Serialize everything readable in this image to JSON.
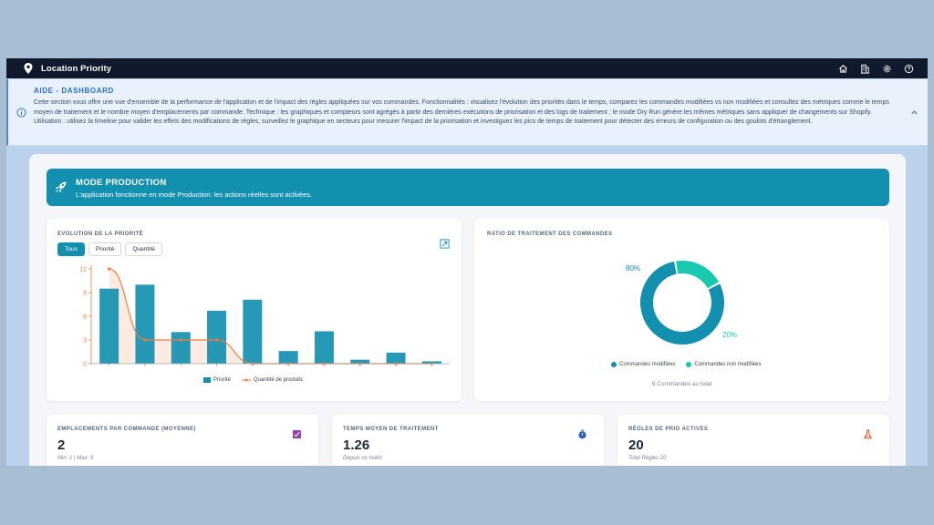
{
  "header": {
    "title": "Location Priority",
    "icons": [
      "home-icon",
      "building-icon",
      "gear-icon",
      "help-circle-icon"
    ]
  },
  "help": {
    "title": "AIDE - DASHBOARD",
    "text": "Cette section vous offre une vue d'ensemble de la performance de l'application et de l'impact des règles appliquées sur vos commandes. Fonctionnalités : visualisez l'évolution des priorités dans le temps, comparez les commandes modifiées vs non modifiées et consultez des métriques comme le temps moyen de traitement et le nombre moyen d'emplacements par commande. Technique : les graphiques et compteurs sont agrégés à partir des dernières exécutions de priorisation et des logs de traitement ; le mode Dry Run génère les mêmes métriques sans appliquer de changements sur Shopify. Utilisation : utilisez la timeline pour valider les effets des modifications de règles, surveillez le graphique en secteurs pour mesurer l'impact de la priorisation et investiguez les pics de temps de traitement pour détecter des erreurs de configuration ou des goulots d'étranglement."
  },
  "banner": {
    "title": "MODE PRODUCTION",
    "subtitle": "L'application fonctionne en mode Production: les actions réelles sont activées."
  },
  "evolution": {
    "title": "EVOLUTION DE LA PRIORITÉ",
    "tabs": [
      "Tous",
      "Priorité",
      "Quantité"
    ],
    "legend_bar": "Priorité",
    "legend_line": "Quantité de produits"
  },
  "ratio": {
    "title": "RATIO DE TRAITEMENT DES COMMANDES",
    "legend_a": "Commandes modifiées",
    "legend_b": "Commandes non modifiées",
    "label_a": "80%",
    "label_b": "20%",
    "total": "5 Commandes au total"
  },
  "stats": [
    {
      "label": "EMPLACEMENTS PAR COMMANDE (MOYENNE)",
      "value": "2",
      "sub": "Min: 1 | Max: 3"
    },
    {
      "label": "TEMPS MOYEN DE TRAITEMENT",
      "value": "1.26",
      "sub": "Depuis ce matin"
    },
    {
      "label": "RÈGLES DE PRIO ACTIVES",
      "value": "20",
      "sub": "Total Règles 20"
    }
  ],
  "colors": {
    "accent": "#1390b0",
    "bar": "#1390b0",
    "line": "#f07b3f",
    "donut_a": "#1390b0",
    "donut_b": "#19c9b0"
  },
  "chart_data": [
    {
      "type": "bar",
      "categories": [
        "",
        "",
        "",
        "",
        "",
        "",
        "",
        "",
        "",
        ""
      ],
      "series": [
        {
          "name": "Priorité",
          "type": "bar",
          "values": [
            9.5,
            10,
            4,
            6.7,
            8.1,
            1.6,
            4.1,
            0.5,
            1.4,
            0.3
          ]
        },
        {
          "name": "Quantité de produits",
          "type": "area",
          "values": [
            12,
            3,
            3,
            3,
            0,
            0,
            0,
            0,
            0,
            0
          ]
        }
      ],
      "yticks": [
        "0",
        "3",
        "6",
        "9",
        "12"
      ],
      "ylim": [
        0,
        12
      ],
      "grid": false,
      "legend": "bottom"
    },
    {
      "type": "pie",
      "categories": [
        "Commandes modifiées",
        "Commandes non modifiées"
      ],
      "values": [
        80,
        20
      ],
      "legend": "bottom"
    }
  ]
}
